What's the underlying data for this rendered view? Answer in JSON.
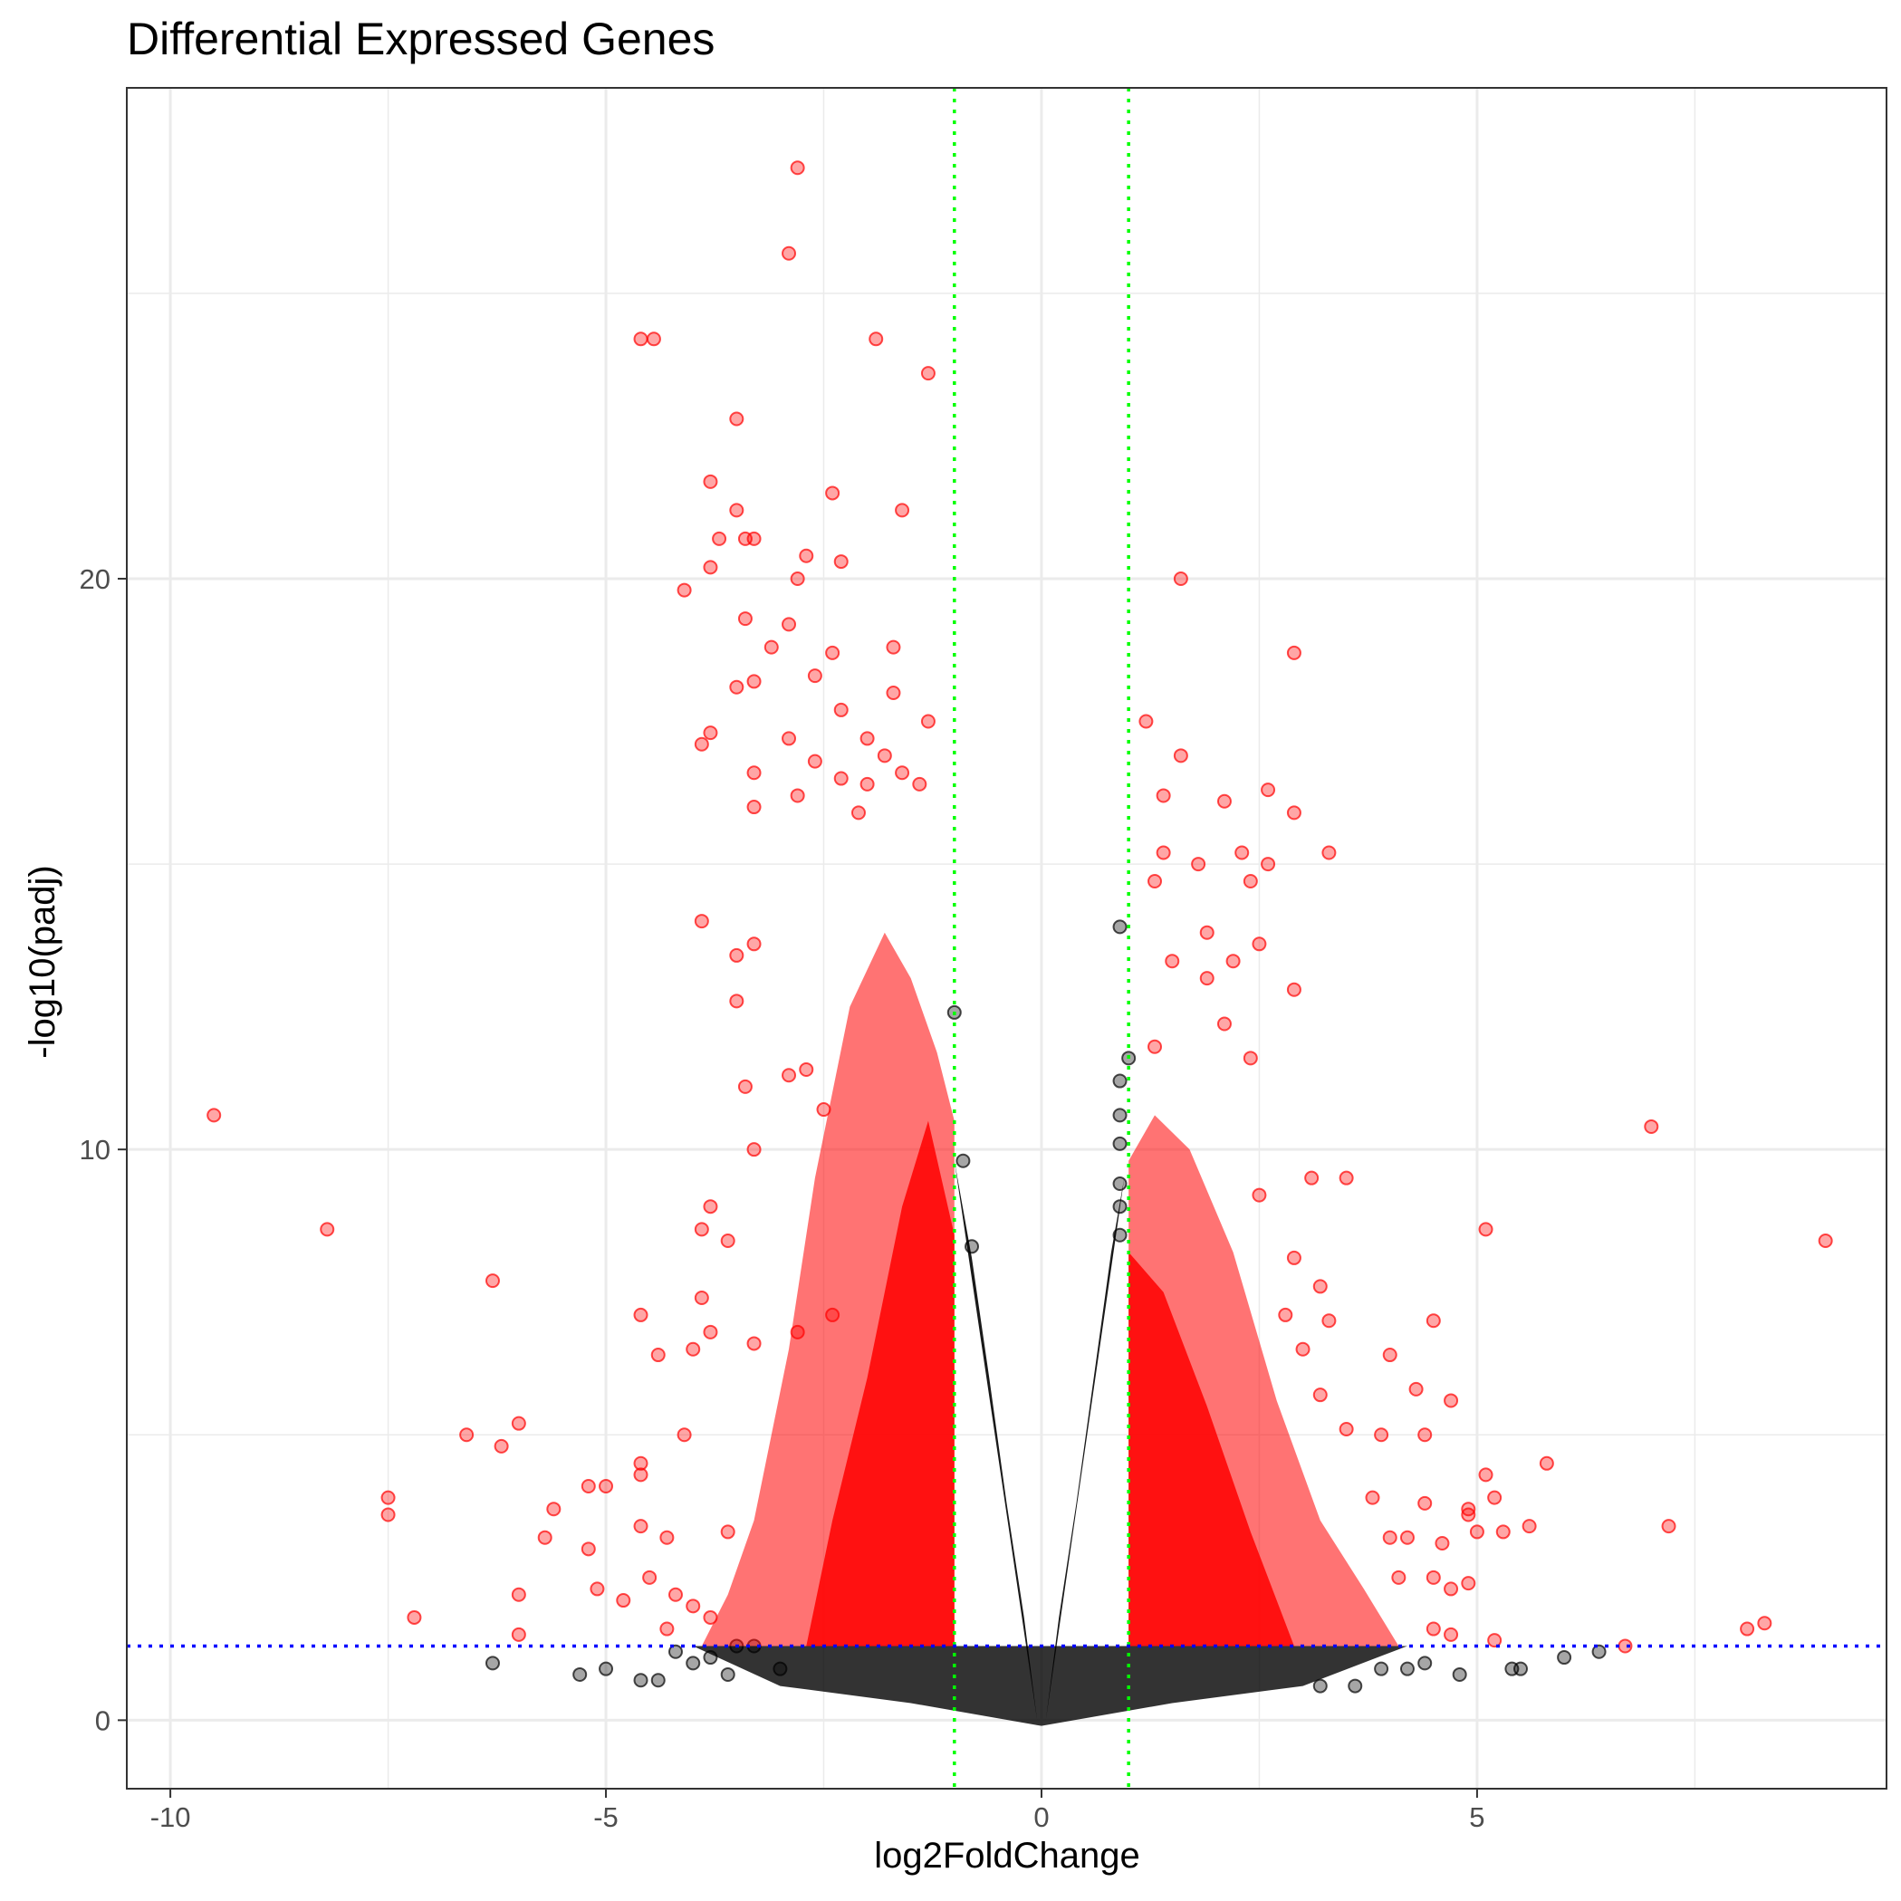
{
  "chart_data": {
    "type": "scatter",
    "title": "Differential Expressed Genes",
    "xlabel": "log2FoldChange",
    "ylabel": "-log10(padj)",
    "xlim": [
      -10.5,
      9.7
    ],
    "ylim": [
      -1.2,
      28.6
    ],
    "x_ticks": [
      -10,
      -5,
      0,
      5
    ],
    "y_ticks": [
      0,
      10,
      20
    ],
    "x_tick_labels": [
      "-10",
      "-5",
      "0",
      "5"
    ],
    "y_tick_labels": [
      "0",
      "10",
      "20"
    ],
    "grid": true,
    "thresholds": {
      "log2fc": [
        -1,
        1
      ],
      "neg_log10_padj": 1.3,
      "fc_line_color": "#00ff00",
      "padj_line_color": "#0000ff"
    },
    "series": [
      {
        "color": "#ff0000",
        "points": [
          [
            -2.8,
            27.2
          ],
          [
            -2.9,
            25.7
          ],
          [
            -1.9,
            24.2
          ],
          [
            -4.6,
            24.2
          ],
          [
            -4.45,
            24.2
          ],
          [
            -1.3,
            23.6
          ],
          [
            -3.5,
            22.8
          ],
          [
            -3.8,
            21.7
          ],
          [
            -2.4,
            21.5
          ],
          [
            -3.5,
            21.2
          ],
          [
            -1.6,
            21.2
          ],
          [
            -3.4,
            20.7
          ],
          [
            -3.3,
            20.7
          ],
          [
            -3.7,
            20.7
          ],
          [
            -2.7,
            20.4
          ],
          [
            -2.3,
            20.3
          ],
          [
            -3.8,
            20.2
          ],
          [
            -2.8,
            20.0
          ],
          [
            -4.1,
            19.8
          ],
          [
            -3.4,
            19.3
          ],
          [
            -2.9,
            19.2
          ],
          [
            -3.1,
            18.8
          ],
          [
            -2.4,
            18.7
          ],
          [
            -1.7,
            18.8
          ],
          [
            -3.3,
            18.2
          ],
          [
            -2.6,
            18.3
          ],
          [
            -3.5,
            18.1
          ],
          [
            -1.7,
            18.0
          ],
          [
            -2.3,
            17.7
          ],
          [
            -1.3,
            17.5
          ],
          [
            -3.8,
            17.3
          ],
          [
            -3.9,
            17.1
          ],
          [
            -2.9,
            17.2
          ],
          [
            -2.0,
            17.2
          ],
          [
            -2.6,
            16.8
          ],
          [
            -1.8,
            16.9
          ],
          [
            -1.6,
            16.6
          ],
          [
            -3.3,
            16.6
          ],
          [
            -2.3,
            16.5
          ],
          [
            -2.0,
            16.4
          ],
          [
            -1.4,
            16.4
          ],
          [
            -3.3,
            16.0
          ],
          [
            -2.8,
            16.2
          ],
          [
            -2.1,
            15.9
          ],
          [
            -3.9,
            14.0
          ],
          [
            -3.5,
            13.4
          ],
          [
            -3.3,
            13.6
          ],
          [
            -3.5,
            12.6
          ],
          [
            -2.9,
            11.3
          ],
          [
            -2.7,
            11.4
          ],
          [
            -3.4,
            11.1
          ],
          [
            -2.5,
            10.7
          ],
          [
            -3.3,
            10.0
          ],
          [
            -3.8,
            9.0
          ],
          [
            -3.9,
            8.6
          ],
          [
            -3.6,
            8.4
          ],
          [
            -3.9,
            7.4
          ],
          [
            -3.8,
            6.8
          ],
          [
            -3.3,
            6.6
          ],
          [
            -2.8,
            6.8
          ],
          [
            -4.0,
            6.5
          ],
          [
            -2.4,
            7.1
          ],
          [
            -9.5,
            10.6
          ],
          [
            -8.2,
            8.6
          ],
          [
            -6.3,
            7.7
          ],
          [
            -4.6,
            7.1
          ],
          [
            -4.4,
            6.4
          ],
          [
            -6.6,
            5.0
          ],
          [
            -6.2,
            4.8
          ],
          [
            -6.0,
            5.2
          ],
          [
            -4.1,
            5.0
          ],
          [
            -4.6,
            4.5
          ],
          [
            -4.6,
            4.3
          ],
          [
            -5.2,
            4.1
          ],
          [
            -5.0,
            4.1
          ],
          [
            -7.5,
            3.9
          ],
          [
            -7.5,
            3.6
          ],
          [
            -5.6,
            3.7
          ],
          [
            -5.7,
            3.2
          ],
          [
            -5.2,
            3.0
          ],
          [
            -4.6,
            3.4
          ],
          [
            -4.3,
            3.2
          ],
          [
            -3.6,
            3.3
          ],
          [
            -7.2,
            1.8
          ],
          [
            -6.0,
            2.2
          ],
          [
            -6.0,
            1.5
          ],
          [
            -5.1,
            2.3
          ],
          [
            -4.8,
            2.1
          ],
          [
            -4.5,
            2.5
          ],
          [
            -4.2,
            2.2
          ],
          [
            -4.0,
            2.0
          ],
          [
            -4.3,
            1.6
          ],
          [
            -3.8,
            1.8
          ],
          [
            1.6,
            20.0
          ],
          [
            2.9,
            18.7
          ],
          [
            1.2,
            17.5
          ],
          [
            1.6,
            16.9
          ],
          [
            1.4,
            16.2
          ],
          [
            2.6,
            16.3
          ],
          [
            2.1,
            16.1
          ],
          [
            2.9,
            15.9
          ],
          [
            1.4,
            15.2
          ],
          [
            3.3,
            15.2
          ],
          [
            2.3,
            15.2
          ],
          [
            2.6,
            15.0
          ],
          [
            1.3,
            14.7
          ],
          [
            1.8,
            15.0
          ],
          [
            2.4,
            14.7
          ],
          [
            1.9,
            13.8
          ],
          [
            2.5,
            13.6
          ],
          [
            1.5,
            13.3
          ],
          [
            2.2,
            13.3
          ],
          [
            1.9,
            13.0
          ],
          [
            2.9,
            12.8
          ],
          [
            2.1,
            12.2
          ],
          [
            1.3,
            11.8
          ],
          [
            2.4,
            11.6
          ],
          [
            3.1,
            9.5
          ],
          [
            3.5,
            9.5
          ],
          [
            2.5,
            9.2
          ],
          [
            2.9,
            8.1
          ],
          [
            3.2,
            7.6
          ],
          [
            5.1,
            8.6
          ],
          [
            7.0,
            10.4
          ],
          [
            9.0,
            8.4
          ],
          [
            2.8,
            7.1
          ],
          [
            3.3,
            7.0
          ],
          [
            3.0,
            6.5
          ],
          [
            4.0,
            6.4
          ],
          [
            4.5,
            7.0
          ],
          [
            4.3,
            5.8
          ],
          [
            4.7,
            5.6
          ],
          [
            3.2,
            5.7
          ],
          [
            3.5,
            5.1
          ],
          [
            3.9,
            5.0
          ],
          [
            4.4,
            5.0
          ],
          [
            5.1,
            4.3
          ],
          [
            5.8,
            4.5
          ],
          [
            4.4,
            3.8
          ],
          [
            4.9,
            3.7
          ],
          [
            5.2,
            3.9
          ],
          [
            3.8,
            3.9
          ],
          [
            4.2,
            3.2
          ],
          [
            4.0,
            3.2
          ],
          [
            4.6,
            3.1
          ],
          [
            4.9,
            3.6
          ],
          [
            5.0,
            3.3
          ],
          [
            5.6,
            3.4
          ],
          [
            7.2,
            3.4
          ],
          [
            5.3,
            3.3
          ],
          [
            6.7,
            1.3
          ],
          [
            8.1,
            1.6
          ],
          [
            8.3,
            1.7
          ],
          [
            5.2,
            1.4
          ],
          [
            4.7,
            1.5
          ],
          [
            4.5,
            1.6
          ],
          [
            4.9,
            2.4
          ],
          [
            4.7,
            2.3
          ],
          [
            4.5,
            2.5
          ],
          [
            4.1,
            2.5
          ]
        ]
      },
      {
        "color": "#000000",
        "points": [
          [
            0.9,
            13.9
          ],
          [
            1.0,
            11.6
          ],
          [
            0.9,
            11.2
          ],
          [
            0.9,
            10.6
          ],
          [
            0.9,
            10.1
          ],
          [
            0.9,
            9.4
          ],
          [
            0.9,
            9.0
          ],
          [
            0.9,
            8.5
          ],
          [
            -1.0,
            12.4
          ],
          [
            -0.9,
            9.8
          ],
          [
            -0.8,
            8.3
          ],
          [
            -6.3,
            1.0
          ],
          [
            -5.3,
            0.8
          ],
          [
            -5.0,
            0.9
          ],
          [
            -4.6,
            0.7
          ],
          [
            -4.4,
            0.7
          ],
          [
            -4.2,
            1.2
          ],
          [
            -4.0,
            1.0
          ],
          [
            -3.8,
            1.1
          ],
          [
            -3.6,
            0.8
          ],
          [
            -3.5,
            1.3
          ],
          [
            -3.3,
            1.3
          ],
          [
            -3.0,
            0.9
          ],
          [
            5.4,
            0.9
          ],
          [
            5.5,
            0.9
          ],
          [
            6.0,
            1.1
          ],
          [
            6.4,
            1.2
          ],
          [
            4.8,
            0.8
          ],
          [
            4.4,
            1.0
          ],
          [
            4.2,
            0.9
          ],
          [
            3.6,
            0.6
          ],
          [
            3.2,
            0.6
          ],
          [
            3.9,
            0.9
          ]
        ]
      }
    ]
  }
}
